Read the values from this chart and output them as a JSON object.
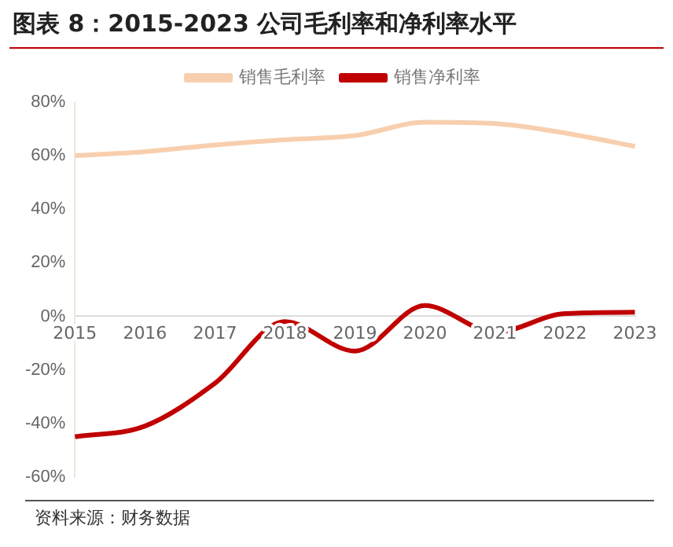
{
  "chart_data": {
    "type": "line",
    "title": "图表 8：2015-2023 公司毛利率和净利率水平",
    "categories": [
      "2015",
      "2016",
      "2017",
      "2018",
      "2019",
      "2020",
      "2021",
      "2022",
      "2023"
    ],
    "series": [
      {
        "name": "销售毛利率",
        "color": "#f8cfae",
        "values": [
          60,
          61.5,
          64,
          66,
          67.5,
          72.5,
          72,
          68.5,
          63.5
        ]
      },
      {
        "name": "销售净利率",
        "color": "#c00000",
        "values": [
          -45,
          -41,
          -25,
          -2,
          -13,
          4,
          -6,
          1,
          1.5
        ]
      }
    ],
    "ylim": [
      -60,
      80
    ],
    "yticks": [
      {
        "value": -60,
        "label": "-60%"
      },
      {
        "value": -40,
        "label": "-40%"
      },
      {
        "value": -20,
        "label": "-20%"
      },
      {
        "value": 0,
        "label": "0%"
      },
      {
        "value": 20,
        "label": "20%"
      },
      {
        "value": 40,
        "label": "40%"
      },
      {
        "value": 60,
        "label": "60%"
      },
      {
        "value": 80,
        "label": "80%"
      }
    ],
    "grid": false,
    "legend": "top",
    "marker": "none",
    "line_style": "solid",
    "annotations": [
      "资料来源：财务数据"
    ]
  }
}
